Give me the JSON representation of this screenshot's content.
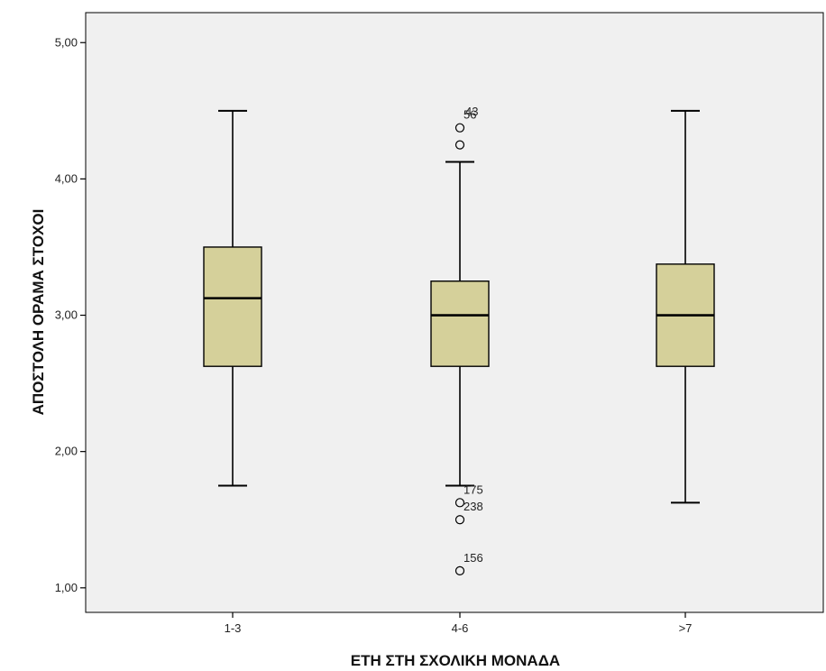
{
  "chart_data": {
    "type": "boxplot",
    "xlabel": "ΕΤΗ ΣΤΗ ΣΧΟΛΙΚΗ ΜΟΝΑΔΑ",
    "ylabel": "ΑΠΟΣΤΟΛΗ ΟΡΑΜΑ ΣΤΟΧΟΙ",
    "ylim": [
      0.82,
      5.22
    ],
    "yticks": [
      {
        "value": 1,
        "label": "1,00"
      },
      {
        "value": 2,
        "label": "2,00"
      },
      {
        "value": 3,
        "label": "3,00"
      },
      {
        "value": 4,
        "label": "4,00"
      },
      {
        "value": 5,
        "label": "5,00"
      }
    ],
    "categories": [
      "1-3",
      "4-6",
      ">7"
    ],
    "boxes": [
      {
        "category": "1-3",
        "whisker_low": 1.75,
        "q1": 2.625,
        "median": 3.125,
        "q3": 3.5,
        "whisker_high": 4.5,
        "outliers": []
      },
      {
        "category": "4-6",
        "whisker_low": 1.75,
        "q1": 2.625,
        "median": 3.0,
        "q3": 3.25,
        "whisker_high": 4.125,
        "outliers": [
          {
            "value": 4.375,
            "label": "56"
          },
          {
            "value": 4.25,
            "label": ""
          },
          {
            "value": 1.625,
            "label": "175"
          },
          {
            "value": 1.5,
            "label": "238"
          },
          {
            "value": 1.125,
            "label": "156"
          }
        ]
      },
      {
        "category": ">7",
        "whisker_low": 1.625,
        "q1": 2.625,
        "median": 3.0,
        "q3": 3.375,
        "whisker_high": 4.5,
        "outliers": []
      }
    ],
    "extra_labels": [
      {
        "category": "4-6",
        "value": 4.5,
        "label": "43"
      }
    ],
    "colors": {
      "box_fill": "#d5d09a",
      "plot_bg": "#f0f0f0",
      "line": "#000000"
    },
    "grid": false
  }
}
